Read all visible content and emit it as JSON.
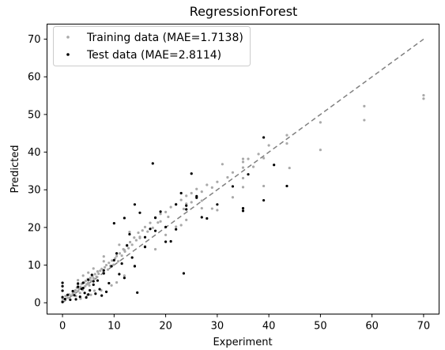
{
  "chart_data": {
    "type": "scatter",
    "title": "RegressionForest",
    "xlabel": "Experiment",
    "ylabel": "Predicted",
    "xlim": [
      -3,
      73
    ],
    "ylim": [
      -3,
      74
    ],
    "xticks": [
      0,
      10,
      20,
      30,
      40,
      50,
      60,
      70
    ],
    "yticks": [
      0,
      10,
      20,
      30,
      40,
      50,
      60,
      70
    ],
    "grid": false,
    "legend_position": "top-left",
    "reference_line": {
      "from": [
        0,
        0
      ],
      "to": [
        70,
        70
      ],
      "style": "dashed",
      "color": "#808080"
    },
    "series": [
      {
        "name": "Training data (MAE=1.7138)",
        "color": "#a9a9a9",
        "x": [
          0,
          0,
          0.3,
          0.6,
          1,
          1.3,
          1.6,
          2,
          2,
          2.3,
          2.5,
          2.6,
          2.8,
          3,
          3,
          3.2,
          3.4,
          3.5,
          3.7,
          3.9,
          4,
          4.2,
          4.4,
          4.5,
          4.7,
          4.9,
          5,
          5.2,
          5.4,
          5.5,
          5.8,
          6,
          6.3,
          6.6,
          6.8,
          7,
          7.3,
          7.6,
          7.9,
          8.2,
          8.5,
          8.8,
          9,
          9.3,
          9.6,
          9.9,
          10.2,
          10.5,
          10.8,
          11.1,
          11.5,
          11.8,
          12.1,
          12.5,
          12.8,
          13.1,
          13.5,
          13.9,
          14.3,
          14.7,
          15,
          15.5,
          16,
          16.5,
          17,
          17.5,
          18,
          18.5,
          19,
          20,
          20.5,
          21,
          22,
          23,
          23.5,
          24,
          25,
          25,
          26,
          27,
          27,
          28,
          29,
          30,
          31,
          32,
          33,
          35,
          35,
          35,
          36,
          37,
          38,
          39,
          40,
          43.5,
          43.5,
          50,
          50,
          58.5,
          58.5,
          70,
          70,
          4,
          6,
          8,
          11,
          13,
          15,
          19,
          22,
          24,
          27,
          35,
          5.5,
          7.5,
          9.5,
          12,
          3.5,
          4.8,
          6.2,
          10.5,
          14,
          18,
          23,
          30,
          35,
          44,
          3,
          5,
          8,
          12,
          16,
          20,
          24,
          29,
          33,
          39
        ],
        "y": [
          0.5,
          1.2,
          1.0,
          1.8,
          1.3,
          2.2,
          1.9,
          3.0,
          2.4,
          2.8,
          3.3,
          1.8,
          4.0,
          3.1,
          4.8,
          3.6,
          2.6,
          4.2,
          5.0,
          3.4,
          3.9,
          5.4,
          4.4,
          5.8,
          4.9,
          6.3,
          5.3,
          4.6,
          6.6,
          5.9,
          7.1,
          6.5,
          7.6,
          6.9,
          8.3,
          7.7,
          8.5,
          9.0,
          8.1,
          9.4,
          10.0,
          8.8,
          10.6,
          9.8,
          11.2,
          10.1,
          11.8,
          12.4,
          11.0,
          13.1,
          12.5,
          14.2,
          13.6,
          15.3,
          14.5,
          16.1,
          15.4,
          17.3,
          16.6,
          18.6,
          17.5,
          19.2,
          20.1,
          18.9,
          21.2,
          19.9,
          22.5,
          21.3,
          23.6,
          24.1,
          22.8,
          25.4,
          26.2,
          27.3,
          24.9,
          28.4,
          29.1,
          26.7,
          30.2,
          29.5,
          27.1,
          31.3,
          30.6,
          32.1,
          36.8,
          33.3,
          34.6,
          35.9,
          33.1,
          37.4,
          38.2,
          36.1,
          39.5,
          38.4,
          41.8,
          44.5,
          42.3,
          47.9,
          40.6,
          52.2,
          48.5,
          55.1,
          54.2,
          7.2,
          9.1,
          12.3,
          15.4,
          18.8,
          17.2,
          21.6,
          20.2,
          26.3,
          25.1,
          38.2,
          2.1,
          3.3,
          4.6,
          7.2,
          1.1,
          2.0,
          3.2,
          5.4,
          9.8,
          14.2,
          20.6,
          24.6,
          30.7,
          35.8,
          6.0,
          8.0,
          11.0,
          14.0,
          15.0,
          18.0,
          22.0,
          25.0,
          28.0,
          31.0
        ]
      },
      {
        "name": "Test data (MAE=2.8114)",
        "color": "#000000",
        "x": [
          0,
          0,
          0,
          0,
          0,
          0.5,
          1,
          1.5,
          2,
          2.3,
          2.6,
          3,
          3.4,
          3.7,
          4,
          4.3,
          4.6,
          5,
          5.3,
          5.7,
          6,
          6.4,
          6.8,
          7.2,
          7.6,
          8,
          8.5,
          9,
          9.5,
          10,
          10.5,
          11,
          11.5,
          12,
          12.5,
          13,
          13.5,
          14,
          14.5,
          15,
          16,
          17,
          17.5,
          18,
          19,
          20,
          21,
          22,
          23,
          23.5,
          24,
          25,
          26,
          27,
          30,
          35,
          35,
          39,
          39,
          43.5,
          3,
          4,
          5,
          6,
          8,
          10,
          12,
          14,
          16,
          18,
          20,
          22,
          24,
          26,
          28,
          33,
          36,
          41
        ],
        "y": [
          0.2,
          1.5,
          3.2,
          4.4,
          5.3,
          1.0,
          2.1,
          0.8,
          3.1,
          2.0,
          0.9,
          4.2,
          1.6,
          3.7,
          5.3,
          2.6,
          1.4,
          6.1,
          3.3,
          7.4,
          4.8,
          2.4,
          5.9,
          3.6,
          1.9,
          7.8,
          2.9,
          5.2,
          9.7,
          21.1,
          13.1,
          7.6,
          10.4,
          22.5,
          15.2,
          18.2,
          12.0,
          26.1,
          2.7,
          23.9,
          17.4,
          19.6,
          37.0,
          22.6,
          24.2,
          20.1,
          16.3,
          26.1,
          29.1,
          7.8,
          24.8,
          34.3,
          27.9,
          22.7,
          26.1,
          25.1,
          24.4,
          43.9,
          27.2,
          31.0,
          5.1,
          3.9,
          2.2,
          5.7,
          8.6,
          11.3,
          6.6,
          9.7,
          14.8,
          19.1,
          16.2,
          19.5,
          25.8,
          28.3,
          22.4,
          30.9,
          34.1,
          36.6
        ]
      }
    ]
  }
}
